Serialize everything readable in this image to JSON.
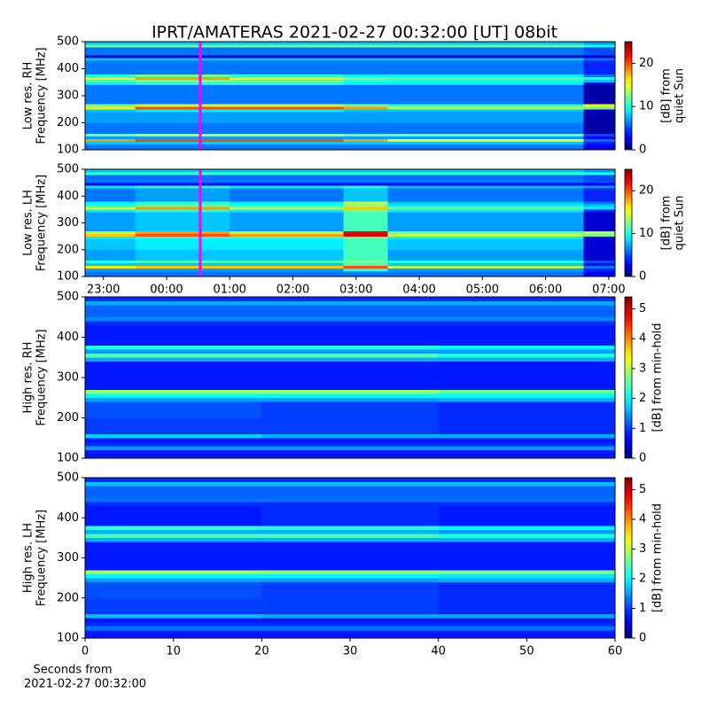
{
  "title": "IPRT/AMATERAS 2021-02-27 00:32:00 [UT]   08bit",
  "xlabel": [
    "Seconds from",
    "2021-02-27 00:32:00"
  ],
  "chart_data": [
    {
      "type": "heatmap",
      "colormap": "jet",
      "ylabel": [
        "Low res. RH",
        "Frequency [MHz]"
      ],
      "xlim": [
        -1.29,
        7.1
      ],
      "ylim": [
        100,
        500
      ],
      "yticks": [
        100,
        200,
        300,
        400,
        500
      ],
      "marker_x": 0.533,
      "marker_color": "#ff00ff",
      "colorbar": {
        "label": [
          "[dB] from",
          "quiet Sun"
        ],
        "lim": [
          0,
          25
        ],
        "ticks": [
          0,
          10,
          20
        ]
      },
      "x_edges": [
        -1.29,
        -0.5,
        1,
        2.8,
        3.5,
        6.6,
        7.1
      ],
      "y_edges": [
        100,
        120,
        130,
        140,
        150,
        160,
        200,
        240,
        250,
        260,
        270,
        340,
        350,
        360,
        370,
        380,
        430,
        440,
        450,
        480,
        490,
        500
      ],
      "z": [
        [
          6,
          6,
          6,
          6,
          6,
          3
        ],
        [
          8,
          8,
          8,
          8,
          8,
          4
        ],
        [
          18,
          20,
          20,
          18,
          16,
          6
        ],
        [
          7,
          7,
          7,
          7,
          7,
          3
        ],
        [
          12,
          14,
          14,
          12,
          12,
          5
        ],
        [
          6,
          6,
          6,
          6,
          6,
          1
        ],
        [
          7,
          7,
          7,
          7,
          7,
          1
        ],
        [
          8,
          9,
          9,
          8,
          8,
          2
        ],
        [
          16,
          20,
          20,
          18,
          14,
          12
        ],
        [
          12,
          14,
          14,
          12,
          10,
          16
        ],
        [
          6,
          6,
          6,
          6,
          6,
          1
        ],
        [
          9,
          10,
          10,
          9,
          9,
          3
        ],
        [
          11,
          12,
          12,
          10,
          10,
          8
        ],
        [
          16,
          18,
          16,
          13,
          12,
          10
        ],
        [
          10,
          12,
          10,
          9,
          9,
          6
        ],
        [
          6,
          6,
          6,
          6,
          6,
          4
        ],
        [
          8,
          8,
          8,
          8,
          8,
          6
        ],
        [
          2,
          2,
          2,
          2,
          2,
          2
        ],
        [
          6,
          6,
          6,
          6,
          6,
          5
        ],
        [
          12,
          12,
          12,
          12,
          12,
          10
        ],
        [
          8,
          8,
          8,
          8,
          8,
          7
        ]
      ]
    },
    {
      "type": "heatmap",
      "colormap": "jet",
      "ylabel": [
        "Low res. LH",
        "Frequency [MHz]"
      ],
      "xlim": [
        -1.29,
        7.1
      ],
      "ylim": [
        100,
        500
      ],
      "yticks": [
        100,
        200,
        300,
        400,
        500
      ],
      "xticks": [
        {
          "value": -1,
          "label": "23:00"
        },
        {
          "value": 0,
          "label": "00:00"
        },
        {
          "value": 1,
          "label": "01:00"
        },
        {
          "value": 2,
          "label": "02:00"
        },
        {
          "value": 3,
          "label": "03:00"
        },
        {
          "value": 4,
          "label": "04:00"
        },
        {
          "value": 5,
          "label": "05:00"
        },
        {
          "value": 6,
          "label": "06:00"
        },
        {
          "value": 7,
          "label": "07:00"
        }
      ],
      "marker_x": 0.533,
      "marker_color": "#ff00ff",
      "colorbar": {
        "label": [
          "[dB] from",
          "quiet Sun"
        ],
        "lim": [
          0,
          25
        ],
        "ticks": [
          0,
          10,
          20
        ]
      },
      "x_edges": [
        -1.29,
        -0.5,
        1,
        2.8,
        3.5,
        6.6,
        7.1
      ],
      "y_edges": [
        100,
        120,
        130,
        140,
        150,
        160,
        200,
        240,
        250,
        260,
        270,
        340,
        350,
        360,
        370,
        380,
        430,
        440,
        450,
        480,
        490,
        500
      ],
      "z": [
        [
          6,
          6,
          6,
          6,
          6,
          3
        ],
        [
          7,
          7,
          7,
          10,
          7,
          4
        ],
        [
          16,
          17,
          17,
          20,
          14,
          6
        ],
        [
          8,
          8,
          8,
          11,
          8,
          3
        ],
        [
          10,
          11,
          11,
          12,
          10,
          5
        ],
        [
          7,
          8,
          8,
          11,
          7,
          2
        ],
        [
          8,
          9,
          9,
          11,
          8,
          2
        ],
        [
          9,
          10,
          10,
          12,
          9,
          3
        ],
        [
          17,
          20,
          18,
          23,
          14,
          12
        ],
        [
          14,
          18,
          14,
          22,
          12,
          14
        ],
        [
          7,
          8,
          7,
          11,
          7,
          2
        ],
        [
          9,
          10,
          9,
          12,
          9,
          4
        ],
        [
          15,
          18,
          14,
          17,
          12,
          9
        ],
        [
          10,
          12,
          10,
          13,
          9,
          8
        ],
        [
          9,
          10,
          9,
          14,
          8,
          6
        ],
        [
          6,
          7,
          6,
          8,
          6,
          4
        ],
        [
          9,
          10,
          9,
          10,
          8,
          7
        ],
        [
          3,
          3,
          3,
          3,
          3,
          3
        ],
        [
          6,
          6,
          6,
          6,
          6,
          5
        ],
        [
          11,
          11,
          11,
          11,
          11,
          10
        ],
        [
          8,
          8,
          8,
          8,
          8,
          7
        ]
      ]
    },
    {
      "type": "heatmap",
      "colormap": "jet",
      "ylabel": [
        "High res. RH",
        "Frequency [MHz]"
      ],
      "xlim": [
        0,
        60
      ],
      "ylim": [
        100,
        500
      ],
      "yticks": [
        100,
        200,
        300,
        400,
        500
      ],
      "colorbar": {
        "label": [
          "[dB] from min-hold"
        ],
        "lim": [
          0,
          5.4
        ],
        "ticks": [
          0,
          1,
          2,
          3,
          4,
          5
        ]
      },
      "x_edges": [
        0,
        20,
        40,
        60
      ],
      "y_edges": [
        100,
        120,
        130,
        140,
        150,
        160,
        200,
        240,
        250,
        260,
        270,
        340,
        350,
        360,
        370,
        380,
        430,
        440,
        450,
        480,
        490,
        500
      ],
      "z": [
        [
          0.8,
          0.8,
          0.8
        ],
        [
          1.5,
          1.5,
          1.5
        ],
        [
          0.9,
          0.9,
          0.9
        ],
        [
          0.8,
          0.8,
          0.8
        ],
        [
          1.8,
          1.6,
          1.6
        ],
        [
          1,
          1,
          0.9
        ],
        [
          1.1,
          1,
          0.9
        ],
        [
          1.5,
          1.5,
          1.6
        ],
        [
          2,
          2,
          2
        ],
        [
          2.8,
          2.8,
          2.6
        ],
        [
          0.8,
          0.8,
          0.8
        ],
        [
          1.6,
          1.6,
          1.6
        ],
        [
          2.5,
          2.5,
          2.2
        ],
        [
          1.5,
          1.5,
          1.5
        ],
        [
          2.2,
          2.2,
          2
        ],
        [
          0.8,
          0.8,
          0.8
        ],
        [
          0.9,
          0.9,
          0.9
        ],
        [
          1.4,
          1.4,
          1.4
        ],
        [
          1.2,
          1.2,
          1.2
        ],
        [
          1.6,
          1.6,
          1.6
        ],
        [
          0.9,
          0.9,
          0.9
        ]
      ]
    },
    {
      "type": "heatmap",
      "colormap": "jet",
      "ylabel": [
        "High res. LH",
        "Frequency [MHz]"
      ],
      "xlim": [
        0,
        60
      ],
      "ylim": [
        100,
        500
      ],
      "yticks": [
        100,
        200,
        300,
        400,
        500
      ],
      "xticks": [
        0,
        10,
        20,
        30,
        40,
        50,
        60
      ],
      "colorbar": {
        "label": [
          "[dB] from min-hold"
        ],
        "lim": [
          0,
          5.4
        ],
        "ticks": [
          0,
          1,
          2,
          3,
          4,
          5
        ]
      },
      "x_edges": [
        0,
        20,
        40,
        60
      ],
      "y_edges": [
        100,
        120,
        130,
        140,
        150,
        160,
        200,
        240,
        250,
        260,
        270,
        340,
        350,
        360,
        370,
        380,
        430,
        440,
        450,
        480,
        490,
        500
      ],
      "z": [
        [
          0.8,
          0.8,
          0.8
        ],
        [
          1.3,
          1.3,
          1.3
        ],
        [
          0.9,
          0.9,
          0.9
        ],
        [
          0.8,
          0.8,
          0.8
        ],
        [
          1.7,
          1.6,
          1.6
        ],
        [
          1,
          1,
          0.9
        ],
        [
          1.1,
          1,
          0.9
        ],
        [
          1.5,
          1.5,
          1.6
        ],
        [
          2,
          2,
          1.9
        ],
        [
          2.9,
          2.8,
          2.7
        ],
        [
          0.8,
          0.8,
          0.8
        ],
        [
          1.6,
          1.6,
          1.6
        ],
        [
          2.4,
          2.4,
          2.2
        ],
        [
          1.6,
          1.6,
          1.5
        ],
        [
          2.3,
          2.2,
          2
        ],
        [
          0.8,
          0.9,
          0.8
        ],
        [
          0.9,
          0.9,
          0.9
        ],
        [
          1.3,
          1.3,
          1.3
        ],
        [
          1.2,
          1.2,
          1.2
        ],
        [
          1.7,
          1.7,
          1.7
        ],
        [
          0.9,
          0.9,
          0.9
        ]
      ]
    }
  ]
}
